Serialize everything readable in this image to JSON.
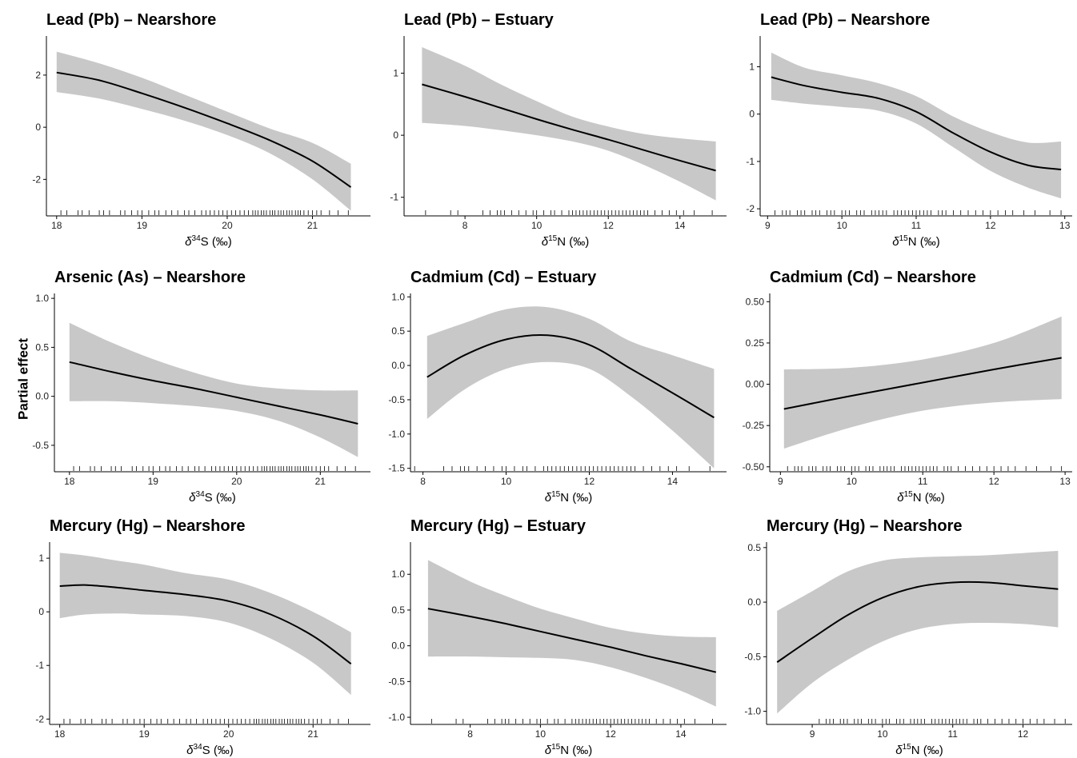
{
  "figure": {
    "ylabel": "Partial effect"
  },
  "chart_data": [
    {
      "type": "line",
      "title": "Lead (Pb) – Nearshore",
      "xlabel": "δ34S (‰)",
      "xlabel_symbol": "δ",
      "xlabel_sup": "34",
      "xlabel_rest": "S (‰)",
      "xlim": [
        17.88,
        21.68
      ],
      "ylim": [
        -3.4,
        3.5
      ],
      "xticks": [
        18,
        19,
        20,
        21
      ],
      "yticks": [
        -2,
        0,
        2
      ],
      "series": [
        {
          "x": [
            18.0,
            18.5,
            19.0,
            19.5,
            20.0,
            20.5,
            21.0,
            21.45
          ],
          "y": [
            2.1,
            1.8,
            1.3,
            0.75,
            0.15,
            -0.5,
            -1.3,
            -2.3
          ],
          "lower": [
            1.35,
            1.1,
            0.7,
            0.25,
            -0.3,
            -1.0,
            -2.0,
            -3.2
          ],
          "upper": [
            2.9,
            2.45,
            1.9,
            1.25,
            0.6,
            -0.05,
            -0.6,
            -1.4
          ]
        }
      ]
    },
    {
      "type": "line",
      "title": "Lead (Pb) – Estuary",
      "xlabel": "δ15N (‰)",
      "xlabel_symbol": "δ",
      "xlabel_sup": "15",
      "xlabel_rest": "N (‰)",
      "xlim": [
        6.3,
        15.3
      ],
      "ylim": [
        -1.3,
        1.6
      ],
      "xticks": [
        8,
        10,
        12,
        14
      ],
      "yticks": [
        -1,
        0,
        1
      ],
      "series": [
        {
          "x": [
            6.8,
            8.0,
            9.0,
            10.0,
            11.0,
            12.0,
            13.0,
            14.0,
            15.0
          ],
          "y": [
            0.82,
            0.62,
            0.44,
            0.26,
            0.09,
            -0.07,
            -0.24,
            -0.41,
            -0.57
          ],
          "lower": [
            0.2,
            0.15,
            0.08,
            0.0,
            -0.1,
            -0.25,
            -0.48,
            -0.75,
            -1.05
          ],
          "upper": [
            1.42,
            1.12,
            0.82,
            0.55,
            0.3,
            0.14,
            0.02,
            -0.05,
            -0.1
          ]
        }
      ]
    },
    {
      "type": "line",
      "title": "Lead (Pb) – Nearshore",
      "xlabel": "δ15N (‰)",
      "xlabel_symbol": "δ",
      "xlabel_sup": "15",
      "xlabel_rest": "N (‰)",
      "xlim": [
        8.9,
        13.1
      ],
      "ylim": [
        -2.15,
        1.65
      ],
      "xticks": [
        9,
        10,
        11,
        12,
        13
      ],
      "yticks": [
        -2,
        -1,
        0,
        1
      ],
      "series": [
        {
          "x": [
            9.05,
            9.5,
            10.0,
            10.5,
            11.0,
            11.5,
            12.0,
            12.5,
            12.95
          ],
          "y": [
            0.78,
            0.6,
            0.46,
            0.33,
            0.05,
            -0.4,
            -0.8,
            -1.08,
            -1.17
          ],
          "lower": [
            0.3,
            0.22,
            0.15,
            0.07,
            -0.2,
            -0.7,
            -1.2,
            -1.55,
            -1.78
          ],
          "upper": [
            1.3,
            0.98,
            0.82,
            0.65,
            0.38,
            -0.05,
            -0.38,
            -0.6,
            -0.58
          ]
        }
      ]
    },
    {
      "type": "line",
      "title": "Arsenic (As) – Nearshore",
      "xlabel": "δ34S (‰)",
      "xlabel_symbol": "δ",
      "xlabel_sup": "34",
      "xlabel_rest": "S (‰)",
      "xlim": [
        17.82,
        21.6
      ],
      "ylim": [
        -0.77,
        1.05
      ],
      "xticks": [
        18,
        19,
        20,
        21
      ],
      "yticks": [
        -0.5,
        0.0,
        0.5,
        1.0
      ],
      "ytick_labels": [
        "-0.5",
        "0.0",
        "0.5",
        "1.0"
      ],
      "series": [
        {
          "x": [
            18.0,
            18.5,
            19.0,
            19.5,
            20.0,
            20.5,
            21.0,
            21.45
          ],
          "y": [
            0.35,
            0.25,
            0.16,
            0.08,
            -0.01,
            -0.1,
            -0.19,
            -0.28
          ],
          "lower": [
            -0.05,
            -0.05,
            -0.07,
            -0.1,
            -0.15,
            -0.25,
            -0.42,
            -0.62
          ],
          "upper": [
            0.75,
            0.55,
            0.38,
            0.24,
            0.13,
            0.08,
            0.06,
            0.06
          ]
        }
      ]
    },
    {
      "type": "line",
      "title": "Cadmium (Cd) – Estuary",
      "xlabel": "δ15N (‰)",
      "xlabel_symbol": "δ",
      "xlabel_sup": "15",
      "xlabel_rest": "N (‰)",
      "xlim": [
        7.7,
        15.3
      ],
      "ylim": [
        -1.55,
        1.05
      ],
      "xticks": [
        8,
        10,
        12,
        14
      ],
      "yticks": [
        -1.5,
        -1.0,
        -0.5,
        0.0,
        0.5,
        1.0
      ],
      "ytick_labels": [
        "-1.5",
        "-1.0",
        "-0.5",
        "0.0",
        "0.5",
        "1.0"
      ],
      "series": [
        {
          "x": [
            8.1,
            9.0,
            10.0,
            11.0,
            12.0,
            13.0,
            14.0,
            15.0
          ],
          "y": [
            -0.17,
            0.15,
            0.38,
            0.44,
            0.3,
            -0.05,
            -0.4,
            -0.76
          ],
          "lower": [
            -0.78,
            -0.35,
            -0.05,
            0.05,
            -0.05,
            -0.45,
            -0.95,
            -1.5
          ],
          "upper": [
            0.43,
            0.62,
            0.82,
            0.85,
            0.68,
            0.35,
            0.15,
            -0.05
          ]
        }
      ]
    },
    {
      "type": "line",
      "title": "Cadmium (Cd) – Nearshore",
      "xlabel": "δ15N (‰)",
      "xlabel_symbol": "δ",
      "xlabel_sup": "15",
      "xlabel_rest": "N (‰)",
      "xlim": [
        8.85,
        13.1
      ],
      "ylim": [
        -0.53,
        0.55
      ],
      "xticks": [
        9,
        10,
        11,
        12,
        13
      ],
      "yticks": [
        -0.5,
        -0.25,
        0.0,
        0.25,
        0.5
      ],
      "ytick_labels": [
        "-0.50",
        "-0.25",
        "0.00",
        "0.25",
        "0.50"
      ],
      "series": [
        {
          "x": [
            9.05,
            10.0,
            11.0,
            12.0,
            12.95
          ],
          "y": [
            -0.15,
            -0.07,
            0.01,
            0.09,
            0.16
          ],
          "lower": [
            -0.39,
            -0.26,
            -0.16,
            -0.11,
            -0.09
          ],
          "upper": [
            0.09,
            0.1,
            0.15,
            0.25,
            0.41
          ]
        }
      ]
    },
    {
      "type": "line",
      "title": "Mercury (Hg) – Nearshore",
      "xlabel": "δ34S (‰)",
      "xlabel_symbol": "δ",
      "xlabel_sup": "34",
      "xlabel_rest": "S (‰)",
      "xlim": [
        17.88,
        21.68
      ],
      "ylim": [
        -2.1,
        1.3
      ],
      "xticks": [
        18,
        19,
        20,
        21
      ],
      "yticks": [
        -2,
        -1,
        0,
        1
      ],
      "series": [
        {
          "x": [
            18.0,
            18.3,
            18.7,
            19.0,
            19.5,
            20.0,
            20.5,
            21.0,
            21.45
          ],
          "y": [
            0.48,
            0.5,
            0.45,
            0.4,
            0.32,
            0.2,
            -0.05,
            -0.45,
            -0.97
          ],
          "lower": [
            -0.12,
            -0.05,
            -0.03,
            -0.05,
            -0.08,
            -0.2,
            -0.5,
            -0.95,
            -1.55
          ],
          "upper": [
            1.1,
            1.05,
            0.95,
            0.88,
            0.72,
            0.6,
            0.35,
            0.0,
            -0.38
          ]
        }
      ]
    },
    {
      "type": "line",
      "title": "Mercury (Hg) – Estuary",
      "xlabel": "δ15N (‰)",
      "xlabel_symbol": "δ",
      "xlabel_sup": "15",
      "xlabel_rest": "N (‰)",
      "xlim": [
        6.3,
        15.3
      ],
      "ylim": [
        -1.1,
        1.45
      ],
      "xticks": [
        8,
        10,
        12,
        14
      ],
      "yticks": [
        -1.0,
        -0.5,
        0.0,
        0.5,
        1.0
      ],
      "ytick_labels": [
        "-1.0",
        "-0.5",
        "0.0",
        "0.5",
        "1.0"
      ],
      "series": [
        {
          "x": [
            6.8,
            8.0,
            9.0,
            10.0,
            11.0,
            12.0,
            13.0,
            14.0,
            15.0
          ],
          "y": [
            0.52,
            0.41,
            0.31,
            0.2,
            0.09,
            -0.02,
            -0.14,
            -0.25,
            -0.37
          ],
          "lower": [
            -0.15,
            -0.15,
            -0.16,
            -0.17,
            -0.2,
            -0.3,
            -0.45,
            -0.63,
            -0.85
          ],
          "upper": [
            1.2,
            0.9,
            0.7,
            0.52,
            0.38,
            0.25,
            0.17,
            0.13,
            0.12
          ]
        }
      ]
    },
    {
      "type": "line",
      "title": "Mercury (Hg) – Nearshore",
      "xlabel": "δ15N (‰)",
      "xlabel_symbol": "δ",
      "xlabel_sup": "15",
      "xlabel_rest": "N (‰)",
      "xlim": [
        8.35,
        12.7
      ],
      "ylim": [
        -1.12,
        0.55
      ],
      "xticks": [
        9,
        10,
        11,
        12
      ],
      "yticks": [
        -1.0,
        -0.5,
        0.0,
        0.5
      ],
      "ytick_labels": [
        "-1.0",
        "-0.5",
        "0.0",
        "0.5"
      ],
      "series": [
        {
          "x": [
            8.5,
            9.0,
            9.5,
            10.0,
            10.5,
            11.0,
            11.5,
            12.0,
            12.5
          ],
          "y": [
            -0.55,
            -0.33,
            -0.12,
            0.04,
            0.14,
            0.18,
            0.18,
            0.15,
            0.12
          ],
          "lower": [
            -1.02,
            -0.74,
            -0.53,
            -0.36,
            -0.25,
            -0.2,
            -0.19,
            -0.2,
            -0.23
          ],
          "upper": [
            -0.08,
            0.1,
            0.28,
            0.38,
            0.41,
            0.42,
            0.43,
            0.45,
            0.47
          ]
        }
      ]
    }
  ]
}
